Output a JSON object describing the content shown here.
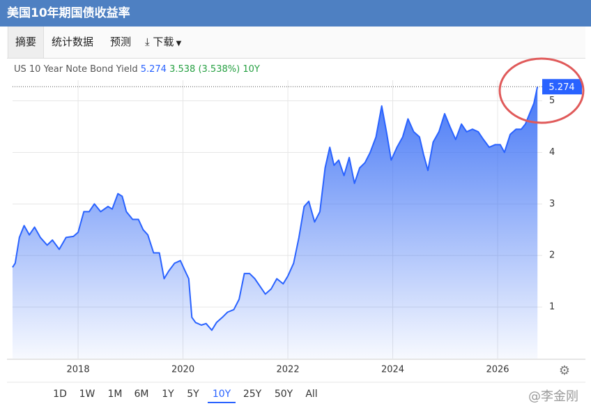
{
  "header": {
    "title": "美国10年期国债收益率"
  },
  "tabs": [
    "摘要",
    "统计数据",
    "预测",
    "下载"
  ],
  "legend": {
    "name": "US 10 Year Note Bond Yield",
    "change": 3.538,
    "change_percent": "(3.538%)"
  },
  "ranges": [
    "1D",
    "1W",
    "1M",
    "6M",
    "1Y",
    "5Y",
    "10Y",
    "25Y",
    "50Y",
    "All"
  ],
  "selected_range": "10Y",
  "watermark": "@李金刚",
  "chart_data": {
    "type": "area",
    "x": [
      2016.75,
      2016.8,
      2016.88,
      2016.97,
      2017.07,
      2017.17,
      2017.28,
      2017.41,
      2017.51,
      2017.64,
      2017.77,
      2017.91,
      2018.0,
      2018.11,
      2018.21,
      2018.31,
      2018.43,
      2018.57,
      2018.65,
      2018.76,
      2018.84,
      2018.92,
      2019.04,
      2019.15,
      2019.24,
      2019.33,
      2019.44,
      2019.55,
      2019.64,
      2019.73,
      2019.84,
      2019.95,
      2020.04,
      2020.11,
      2020.17,
      2020.24,
      2020.35,
      2020.44,
      2020.55,
      2020.64,
      2020.75,
      2020.85,
      2020.97,
      2021.07,
      2021.17,
      2021.27,
      2021.37,
      2021.47,
      2021.57,
      2021.68,
      2021.79,
      2021.91,
      2022.0,
      2022.11,
      2022.21,
      2022.31,
      2022.4,
      2022.51,
      2022.61,
      2022.71,
      2022.8,
      2022.88,
      2022.97,
      2023.07,
      2023.17,
      2023.27,
      2023.37,
      2023.47,
      2023.57,
      2023.68,
      2023.79,
      2023.88,
      2023.97,
      2024.08,
      2024.19,
      2024.29,
      2024.4,
      2024.51,
      2024.59,
      2024.67,
      2024.77,
      2024.88,
      2024.99,
      2025.09,
      2025.2,
      2025.31,
      2025.41,
      2025.52,
      2025.63,
      2025.73,
      2025.84,
      2025.95,
      2026.05,
      2026.13,
      2026.24,
      2026.35,
      2026.45,
      2026.53,
      2026.61,
      2026.69,
      2026.76
    ],
    "series": [
      {
        "name": "US 10 Year Note Bond Yield",
        "color": "#2962ff",
        "values": [
          1.77,
          1.85,
          2.35,
          2.58,
          2.4,
          2.55,
          2.35,
          2.2,
          2.3,
          2.12,
          2.35,
          2.37,
          2.45,
          2.85,
          2.85,
          3.0,
          2.85,
          2.95,
          2.9,
          3.2,
          3.15,
          2.85,
          2.7,
          2.7,
          2.5,
          2.4,
          2.05,
          2.05,
          1.55,
          1.7,
          1.85,
          1.9,
          1.7,
          1.55,
          0.8,
          0.7,
          0.65,
          0.68,
          0.55,
          0.7,
          0.8,
          0.9,
          0.95,
          1.15,
          1.65,
          1.65,
          1.55,
          1.4,
          1.25,
          1.35,
          1.55,
          1.45,
          1.6,
          1.85,
          2.35,
          2.95,
          3.05,
          2.65,
          2.85,
          3.7,
          4.1,
          3.75,
          3.85,
          3.55,
          3.9,
          3.4,
          3.7,
          3.8,
          4.0,
          4.3,
          4.9,
          4.4,
          3.85,
          4.1,
          4.3,
          4.65,
          4.4,
          4.3,
          3.95,
          3.65,
          4.2,
          4.4,
          4.75,
          4.5,
          4.25,
          4.55,
          4.4,
          4.45,
          4.4,
          4.25,
          4.1,
          4.15,
          4.15,
          4.0,
          4.35,
          4.45,
          4.45,
          4.55,
          4.75,
          4.95,
          5.274
        ]
      }
    ],
    "xlim": [
      2016.75,
      2026.85
    ],
    "xticks": [
      2018,
      2020,
      2022,
      2024,
      2026
    ],
    "ylim": [
      0,
      5.4
    ],
    "yticks": [
      1,
      2,
      3,
      4,
      5
    ],
    "grid": true
  }
}
